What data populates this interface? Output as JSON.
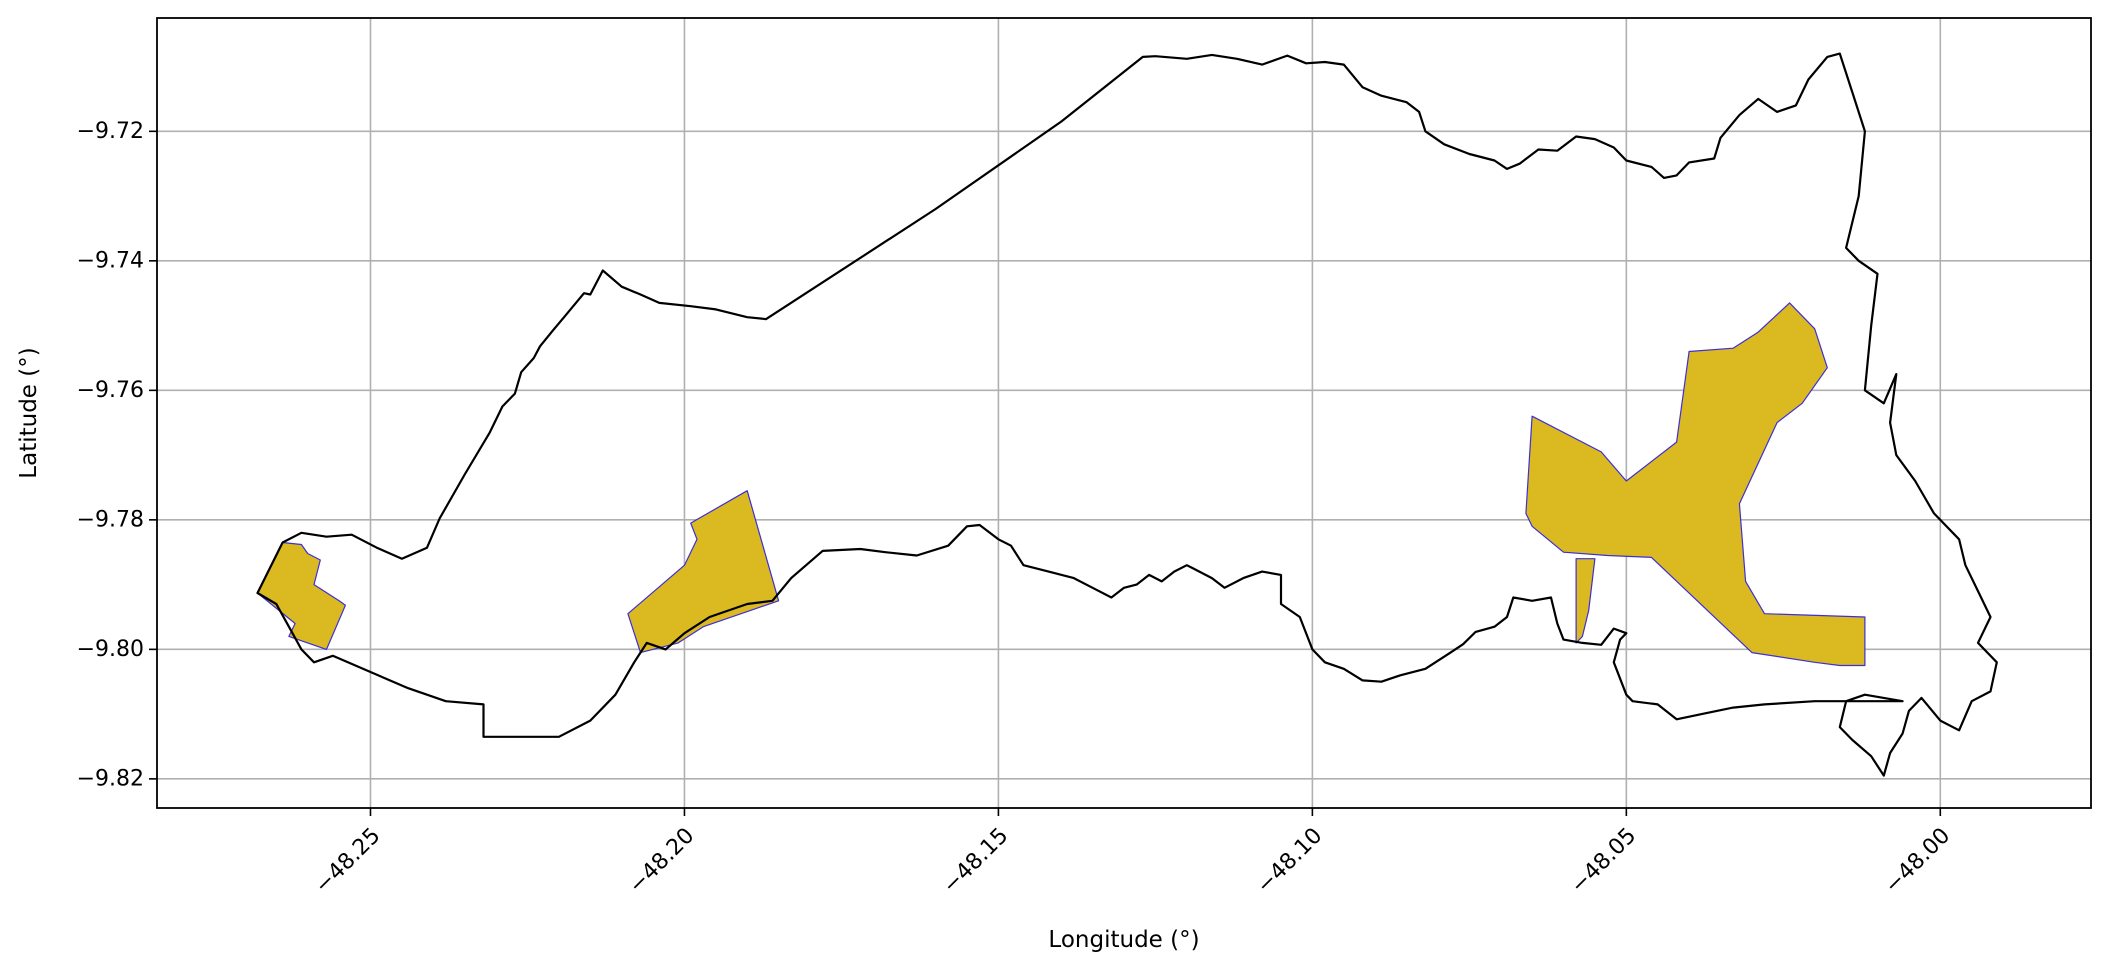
{
  "chart_data": {
    "type": "map",
    "xlabel": "Longitude (°)",
    "ylabel": "Latitude (°)",
    "xlim": [
      -48.284,
      -47.976
    ],
    "ylim": [
      -9.8245,
      -9.7025
    ],
    "x_ticks": [
      {
        "value": -48.25,
        "label": "−48.25"
      },
      {
        "value": -48.2,
        "label": "−48.20"
      },
      {
        "value": -48.15,
        "label": "−48.15"
      },
      {
        "value": -48.1,
        "label": "−48.10"
      },
      {
        "value": -48.05,
        "label": "−48.05"
      },
      {
        "value": -48.0,
        "label": "−48.00"
      }
    ],
    "y_ticks": [
      {
        "value": -9.72,
        "label": "−9.72"
      },
      {
        "value": -9.74,
        "label": "−9.74"
      },
      {
        "value": -9.76,
        "label": "−9.76"
      },
      {
        "value": -9.78,
        "label": "−9.78"
      },
      {
        "value": -9.8,
        "label": "−9.80"
      },
      {
        "value": -9.82,
        "label": "−9.82"
      }
    ],
    "grid": true,
    "colors": {
      "boundary": "#000000",
      "patch_fill": "#dbb921",
      "patch_edge": "#3b2fd8",
      "grid": "#b0b0b0"
    },
    "boundary": [
      [
        -48.268,
        -9.7913
      ],
      [
        -48.264,
        -9.7835
      ],
      [
        -48.261,
        -9.782
      ],
      [
        -48.257,
        -9.7826
      ],
      [
        -48.253,
        -9.7823
      ],
      [
        -48.249,
        -9.7843
      ],
      [
        -48.245,
        -9.786
      ],
      [
        -48.241,
        -9.7843
      ],
      [
        -48.239,
        -9.7798
      ],
      [
        -48.235,
        -9.773
      ],
      [
        -48.231,
        -9.7665
      ],
      [
        -48.229,
        -9.7625
      ],
      [
        -48.227,
        -9.7605
      ],
      [
        -48.226,
        -9.7572
      ],
      [
        -48.224,
        -9.755
      ],
      [
        -48.223,
        -9.7532
      ],
      [
        -48.221,
        -9.7508
      ],
      [
        -48.219,
        -9.7485
      ],
      [
        -48.216,
        -9.745
      ],
      [
        -48.215,
        -9.7452
      ],
      [
        -48.213,
        -9.7415
      ],
      [
        -48.21,
        -9.744
      ],
      [
        -48.207,
        -9.7452
      ],
      [
        -48.204,
        -9.7465
      ],
      [
        -48.199,
        -9.747
      ],
      [
        -48.195,
        -9.7475
      ],
      [
        -48.19,
        -9.7487
      ],
      [
        -48.187,
        -9.749
      ],
      [
        -48.16,
        -9.732
      ],
      [
        -48.14,
        -9.7185
      ],
      [
        -48.127,
        -9.7085
      ],
      [
        -48.125,
        -9.7084
      ],
      [
        -48.12,
        -9.7088
      ],
      [
        -48.116,
        -9.7082
      ],
      [
        -48.112,
        -9.7088
      ],
      [
        -48.108,
        -9.7097
      ],
      [
        -48.104,
        -9.7083
      ],
      [
        -48.101,
        -9.7095
      ],
      [
        -48.098,
        -9.7093
      ],
      [
        -48.095,
        -9.7097
      ],
      [
        -48.092,
        -9.7132
      ],
      [
        -48.089,
        -9.7145
      ],
      [
        -48.085,
        -9.7155
      ],
      [
        -48.083,
        -9.717
      ],
      [
        -48.082,
        -9.72
      ],
      [
        -48.079,
        -9.722
      ],
      [
        -48.075,
        -9.7235
      ],
      [
        -48.071,
        -9.7245
      ],
      [
        -48.069,
        -9.7258
      ],
      [
        -48.067,
        -9.725
      ],
      [
        -48.064,
        -9.7228
      ],
      [
        -48.061,
        -9.723
      ],
      [
        -48.058,
        -9.7208
      ],
      [
        -48.055,
        -9.7212
      ],
      [
        -48.052,
        -9.7225
      ],
      [
        -48.05,
        -9.7245
      ],
      [
        -48.046,
        -9.7255
      ],
      [
        -48.044,
        -9.7272
      ],
      [
        -48.042,
        -9.7268
      ],
      [
        -48.04,
        -9.7248
      ],
      [
        -48.036,
        -9.7242
      ],
      [
        -48.035,
        -9.721
      ],
      [
        -48.032,
        -9.7175
      ],
      [
        -48.029,
        -9.715
      ],
      [
        -48.026,
        -9.717
      ],
      [
        -48.023,
        -9.716
      ],
      [
        -48.021,
        -9.712
      ],
      [
        -48.018,
        -9.7085
      ],
      [
        -48.016,
        -9.708
      ],
      [
        -48.014,
        -9.714
      ],
      [
        -48.012,
        -9.72
      ],
      [
        -48.013,
        -9.73
      ],
      [
        -48.015,
        -9.738
      ],
      [
        -48.013,
        -9.74
      ],
      [
        -48.01,
        -9.742
      ],
      [
        -48.011,
        -9.75
      ],
      [
        -48.012,
        -9.76
      ],
      [
        -48.009,
        -9.762
      ],
      [
        -48.007,
        -9.7575
      ],
      [
        -48.008,
        -9.765
      ],
      [
        -48.007,
        -9.77
      ],
      [
        -48.004,
        -9.774
      ],
      [
        -48.001,
        -9.779
      ],
      [
        -47.997,
        -9.783
      ],
      [
        -47.996,
        -9.787
      ],
      [
        -47.994,
        -9.791
      ],
      [
        -47.992,
        -9.795
      ],
      [
        -47.994,
        -9.799
      ],
      [
        -47.991,
        -9.802
      ],
      [
        -47.992,
        -9.8065
      ],
      [
        -47.995,
        -9.808
      ],
      [
        -47.997,
        -9.8125
      ],
      [
        -48.0,
        -9.811
      ],
      [
        -48.003,
        -9.8075
      ],
      [
        -48.005,
        -9.8095
      ],
      [
        -48.006,
        -9.813
      ],
      [
        -48.008,
        -9.816
      ],
      [
        -48.009,
        -9.8195
      ],
      [
        -48.011,
        -9.8165
      ],
      [
        -48.014,
        -9.814
      ],
      [
        -48.016,
        -9.812
      ],
      [
        -48.015,
        -9.808
      ],
      [
        -48.012,
        -9.807
      ],
      [
        -48.006,
        -9.808
      ],
      [
        -48.02,
        -9.808
      ],
      [
        -48.028,
        -9.8085
      ],
      [
        -48.033,
        -9.809
      ],
      [
        -48.038,
        -9.81
      ],
      [
        -48.042,
        -9.8108
      ],
      [
        -48.045,
        -9.8085
      ],
      [
        -48.049,
        -9.808
      ],
      [
        -48.05,
        -9.807
      ],
      [
        -48.052,
        -9.802
      ],
      [
        -48.051,
        -9.7985
      ],
      [
        -48.05,
        -9.7975
      ],
      [
        -48.052,
        -9.7968
      ],
      [
        -48.054,
        -9.7993
      ],
      [
        -48.057,
        -9.799
      ],
      [
        -48.06,
        -9.7985
      ],
      [
        -48.061,
        -9.796
      ],
      [
        -48.062,
        -9.792
      ],
      [
        -48.065,
        -9.7925
      ],
      [
        -48.068,
        -9.792
      ],
      [
        -48.069,
        -9.795
      ],
      [
        -48.071,
        -9.7965
      ],
      [
        -48.074,
        -9.7973
      ],
      [
        -48.076,
        -9.7992
      ],
      [
        -48.078,
        -9.8005
      ],
      [
        -48.082,
        -9.803
      ],
      [
        -48.086,
        -9.804
      ],
      [
        -48.089,
        -9.805
      ],
      [
        -48.092,
        -9.8048
      ],
      [
        -48.095,
        -9.803
      ],
      [
        -48.098,
        -9.802
      ],
      [
        -48.1,
        -9.8
      ],
      [
        -48.102,
        -9.795
      ],
      [
        -48.105,
        -9.793
      ],
      [
        -48.105,
        -9.7885
      ],
      [
        -48.108,
        -9.788
      ],
      [
        -48.111,
        -9.789
      ],
      [
        -48.114,
        -9.7905
      ],
      [
        -48.116,
        -9.789
      ],
      [
        -48.119,
        -9.7875
      ],
      [
        -48.12,
        -9.787
      ],
      [
        -48.122,
        -9.788
      ],
      [
        -48.124,
        -9.7895
      ],
      [
        -48.126,
        -9.7885
      ],
      [
        -48.128,
        -9.79
      ],
      [
        -48.13,
        -9.7905
      ],
      [
        -48.132,
        -9.792
      ],
      [
        -48.135,
        -9.7905
      ],
      [
        -48.138,
        -9.789
      ],
      [
        -48.142,
        -9.788
      ],
      [
        -48.146,
        -9.787
      ],
      [
        -48.148,
        -9.784
      ],
      [
        -48.15,
        -9.783
      ],
      [
        -48.153,
        -9.7808
      ],
      [
        -48.155,
        -9.781
      ],
      [
        -48.158,
        -9.784
      ],
      [
        -48.163,
        -9.7855
      ],
      [
        -48.168,
        -9.785
      ],
      [
        -48.172,
        -9.7845
      ],
      [
        -48.178,
        -9.7848
      ],
      [
        -48.183,
        -9.789
      ],
      [
        -48.186,
        -9.7925
      ],
      [
        -48.19,
        -9.793
      ],
      [
        -48.196,
        -9.795
      ],
      [
        -48.2,
        -9.7975
      ],
      [
        -48.203,
        -9.8
      ],
      [
        -48.206,
        -9.799
      ],
      [
        -48.208,
        -9.802
      ],
      [
        -48.211,
        -9.807
      ],
      [
        -48.215,
        -9.811
      ],
      [
        -48.22,
        -9.8135
      ],
      [
        -48.232,
        -9.8135
      ],
      [
        -48.232,
        -9.8085
      ],
      [
        -48.238,
        -9.808
      ],
      [
        -48.244,
        -9.806
      ],
      [
        -48.25,
        -9.8035
      ],
      [
        -48.256,
        -9.801
      ],
      [
        -48.259,
        -9.802
      ],
      [
        -48.261,
        -9.8
      ],
      [
        -48.263,
        -9.7965
      ],
      [
        -48.265,
        -9.793
      ],
      [
        -48.268,
        -9.7913
      ]
    ],
    "patches": [
      {
        "id": "west",
        "coords": [
          [
            -48.268,
            -9.7913
          ],
          [
            -48.264,
            -9.7835
          ],
          [
            -48.261,
            -9.7838
          ],
          [
            -48.26,
            -9.7852
          ],
          [
            -48.258,
            -9.7862
          ],
          [
            -48.259,
            -9.79
          ],
          [
            -48.255,
            -9.7925
          ],
          [
            -48.254,
            -9.7932
          ],
          [
            -48.257,
            -9.8
          ],
          [
            -48.263,
            -9.798
          ],
          [
            -48.262,
            -9.796
          ]
        ]
      },
      {
        "id": "central",
        "coords": [
          [
            -48.209,
            -9.7945
          ],
          [
            -48.2,
            -9.787
          ],
          [
            -48.198,
            -9.783
          ],
          [
            -48.199,
            -9.7805
          ],
          [
            -48.19,
            -9.7755
          ],
          [
            -48.185,
            -9.7925
          ],
          [
            -48.197,
            -9.7965
          ],
          [
            -48.201,
            -9.799
          ],
          [
            -48.207,
            -9.8005
          ]
        ]
      },
      {
        "id": "sliver",
        "coords": [
          [
            -48.058,
            -9.786
          ],
          [
            -48.055,
            -9.786
          ],
          [
            -48.056,
            -9.794
          ],
          [
            -48.057,
            -9.798
          ],
          [
            -48.058,
            -9.799
          ]
        ]
      },
      {
        "id": "east",
        "coords": [
          [
            -48.065,
            -9.764
          ],
          [
            -48.054,
            -9.7695
          ],
          [
            -48.05,
            -9.774
          ],
          [
            -48.042,
            -9.768
          ],
          [
            -48.04,
            -9.754
          ],
          [
            -48.033,
            -9.7535
          ],
          [
            -48.029,
            -9.751
          ],
          [
            -48.024,
            -9.7465
          ],
          [
            -48.02,
            -9.7505
          ],
          [
            -48.018,
            -9.7565
          ],
          [
            -48.022,
            -9.762
          ],
          [
            -48.026,
            -9.765
          ],
          [
            -48.032,
            -9.7775
          ],
          [
            -48.031,
            -9.7895
          ],
          [
            -48.028,
            -9.7945
          ],
          [
            -48.012,
            -9.795
          ],
          [
            -48.012,
            -9.8025
          ],
          [
            -48.016,
            -9.8025
          ],
          [
            -48.02,
            -9.802
          ],
          [
            -48.03,
            -9.8005
          ],
          [
            -48.046,
            -9.7858
          ],
          [
            -48.053,
            -9.7855
          ],
          [
            -48.06,
            -9.785
          ],
          [
            -48.065,
            -9.781
          ],
          [
            -48.066,
            -9.779
          ]
        ]
      }
    ]
  }
}
